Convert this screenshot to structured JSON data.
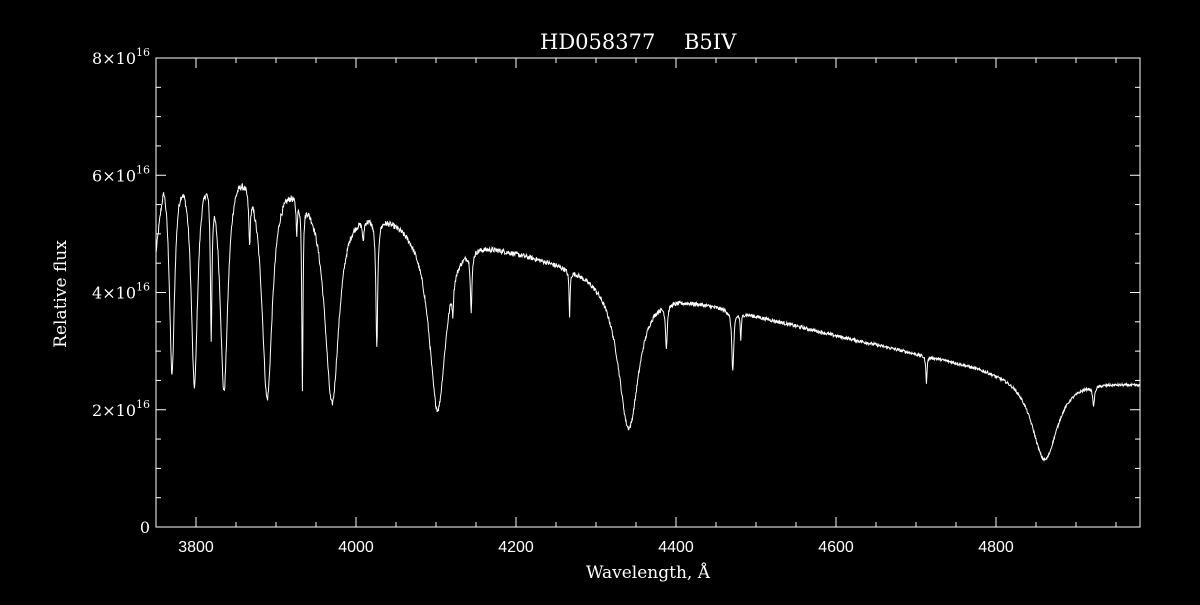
{
  "chart_data": {
    "type": "line",
    "title_star": "HD058377",
    "title_sptype": "B5IV",
    "xlabel": "Wavelength, Å",
    "ylabel": "Relative flux",
    "xlim": [
      3750,
      4980
    ],
    "ylim": [
      0,
      8e+16
    ],
    "x_ticks": [
      {
        "value": 3800,
        "label": "3800"
      },
      {
        "value": 4000,
        "label": "4000"
      },
      {
        "value": 4200,
        "label": "4200"
      },
      {
        "value": 4400,
        "label": "4400"
      },
      {
        "value": 4600,
        "label": "4600"
      },
      {
        "value": 4800,
        "label": "4800"
      }
    ],
    "x_minor_step": 50,
    "y_ticks": [
      {
        "value": 0,
        "mantissa": "0",
        "exponent": ""
      },
      {
        "value": 2e+16,
        "mantissa": "2×10",
        "exponent": "16"
      },
      {
        "value": 4e+16,
        "mantissa": "4×10",
        "exponent": "16"
      },
      {
        "value": 6e+16,
        "mantissa": "6×10",
        "exponent": "16"
      },
      {
        "value": 8e+16,
        "mantissa": "8×10",
        "exponent": "16"
      }
    ],
    "y_minor_step": 5000000000000000.0,
    "continuum": [
      [
        3750,
        4.8e+16
      ],
      [
        3760,
        6.3e+16
      ],
      [
        3790,
        6.5e+16
      ],
      [
        3815,
        6.55e+16
      ],
      [
        3850,
        6.45e+16
      ],
      [
        3880,
        6.3e+16
      ],
      [
        3920,
        6.1e+16
      ],
      [
        3960,
        5.85e+16
      ],
      [
        4000,
        5.6e+16
      ],
      [
        4050,
        5.4e+16
      ],
      [
        4100,
        5.15e+16
      ],
      [
        4150,
        4.95e+16
      ],
      [
        4200,
        4.75e+16
      ],
      [
        4300,
        4.4e+16
      ],
      [
        4400,
        3.98e+16
      ],
      [
        4500,
        3.62e+16
      ],
      [
        4600,
        3.28e+16
      ],
      [
        4700,
        2.98e+16
      ],
      [
        4800,
        2.72e+16
      ],
      [
        4900,
        2.55e+16
      ],
      [
        4980,
        2.45e+16
      ]
    ],
    "absorption_lines": [
      {
        "x": 3770,
        "min": 2.8e+16,
        "width": 4
      },
      {
        "x": 3798,
        "min": 2.65e+16,
        "width": 5
      },
      {
        "x": 3835,
        "min": 2.55e+16,
        "width": 6
      },
      {
        "x": 3889,
        "min": 2.35e+16,
        "width": 8
      },
      {
        "x": 3970,
        "min": 2.2e+16,
        "width": 11
      },
      {
        "x": 4102,
        "min": 2.05e+16,
        "width": 13
      },
      {
        "x": 4341,
        "min": 1.7e+16,
        "width": 16
      },
      {
        "x": 4861,
        "min": 1.15e+16,
        "width": 20
      },
      {
        "x": 3819,
        "min": 4e+16,
        "width": 1.2
      },
      {
        "x": 3867,
        "min": 5.5e+16,
        "width": 1.2
      },
      {
        "x": 3926,
        "min": 5.5e+16,
        "width": 1.0
      },
      {
        "x": 3933,
        "min": 2.85e+16,
        "width": 0.9
      },
      {
        "x": 4009,
        "min": 5.2e+16,
        "width": 1.0
      },
      {
        "x": 4026,
        "min": 3.3e+16,
        "width": 1.4
      },
      {
        "x": 4121,
        "min": 4.6e+16,
        "width": 1.0
      },
      {
        "x": 4144,
        "min": 3.95e+16,
        "width": 1.2
      },
      {
        "x": 4267,
        "min": 3.75e+16,
        "width": 0.8
      },
      {
        "x": 4388,
        "min": 3.3e+16,
        "width": 1.3
      },
      {
        "x": 4471,
        "min": 2.7e+16,
        "width": 1.5
      },
      {
        "x": 4481,
        "min": 3.25e+16,
        "width": 0.8
      },
      {
        "x": 4713,
        "min": 2.5e+16,
        "width": 0.9
      },
      {
        "x": 4922,
        "min": 2.2e+16,
        "width": 1.4
      }
    ]
  }
}
